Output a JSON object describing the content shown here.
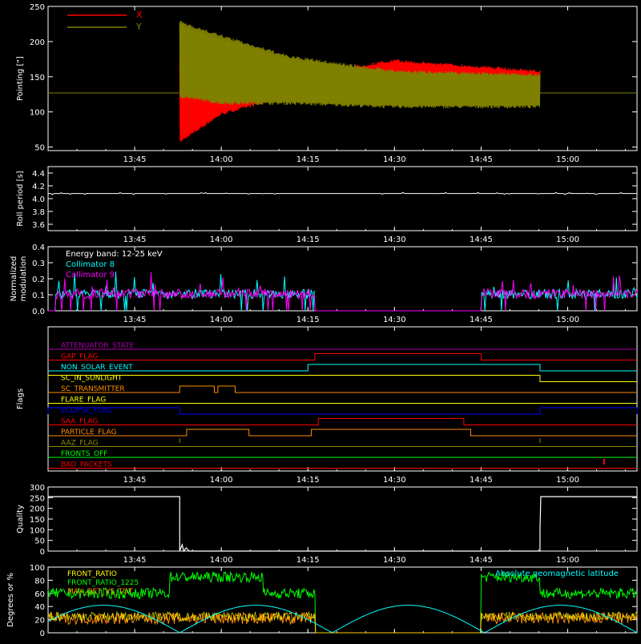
{
  "palette": {
    "bg": "#000000",
    "axis": "#ffffff",
    "red": "#ff0000",
    "olive": "#808000",
    "white": "#ffffff",
    "cyan": "#00ffff",
    "magenta": "#ff00ff",
    "blue": "#0000ff",
    "yellow": "#ffff00",
    "orange": "#ff8c00",
    "green": "#00ff00",
    "olive2": "#8b8b00",
    "purple": "#b000b0",
    "orangered": "#ff4500"
  },
  "time_axis": {
    "range_min": [
      13.5,
      15.2
    ],
    "ticks": [
      {
        "t": 13.75,
        "label": "13:45"
      },
      {
        "t": 14.0,
        "label": "14:00"
      },
      {
        "t": 14.25,
        "label": "14:15"
      },
      {
        "t": 14.5,
        "label": "14:30"
      },
      {
        "t": 14.75,
        "label": "14:45"
      },
      {
        "t": 15.0,
        "label": "15:00"
      }
    ]
  },
  "chart_data": [
    {
      "id": "pointing",
      "type": "line",
      "ylabel": "Pointing [\"]",
      "ylim": [
        45,
        250
      ],
      "yticks": [
        50,
        100,
        150,
        200,
        250
      ],
      "legend": [
        "X",
        "Y"
      ],
      "series": [
        {
          "name": "X",
          "color": "#ff0000",
          "baseline": 127,
          "active": [
            13.88,
            14.92
          ],
          "envelope_points": [
            [
              13.88,
              175,
              55
            ],
            [
              14.0,
              150,
              95
            ],
            [
              14.15,
              135,
              115
            ],
            [
              14.3,
              160,
              130
            ],
            [
              14.5,
              175,
              140
            ],
            [
              14.92,
              160,
              125
            ]
          ]
        },
        {
          "name": "Y",
          "color": "#808000",
          "baseline": 127,
          "active": [
            13.88,
            14.92
          ],
          "envelope_points": [
            [
              13.88,
              230,
              120
            ],
            [
              14.0,
              210,
              110
            ],
            [
              14.2,
              180,
              110
            ],
            [
              14.5,
              160,
              105
            ],
            [
              14.92,
              155,
              105
            ]
          ]
        }
      ]
    },
    {
      "id": "roll",
      "type": "line",
      "ylabel": "Roll period [s]",
      "ylim": [
        3.5,
        4.5
      ],
      "yticks": [
        3.6,
        3.8,
        4.0,
        4.2,
        4.4
      ],
      "series": [
        {
          "name": "",
          "color": "#ffffff",
          "value": 4.08
        }
      ]
    },
    {
      "id": "modulation",
      "type": "line",
      "ylabel": "Normalized modulation",
      "ylim": [
        0.0,
        0.4
      ],
      "yticks": [
        0.0,
        0.1,
        0.2,
        0.3,
        0.4
      ],
      "annotation": "Energy band: 12-25 keV",
      "legend": [
        "Collimator 8",
        "Collimator 9"
      ],
      "active_windows": [
        [
          13.52,
          14.27
        ],
        [
          14.75,
          15.2
        ]
      ],
      "series": [
        {
          "name": "Collimator 8",
          "color": "#00ffff",
          "mean": 0.1
        },
        {
          "name": "Collimator 9",
          "color": "#ff00ff",
          "mean": 0.1
        }
      ]
    },
    {
      "id": "flags",
      "type": "line",
      "ylabel": "Flags",
      "flags": [
        {
          "label": "ATTENUATOR_STATE",
          "color": "#b000b0",
          "segments": []
        },
        {
          "label": "GAP_FLAG",
          "color": "#ff0000",
          "segments": [
            [
              14.27,
              14.75
            ]
          ]
        },
        {
          "label": "NON_SOLAR_EVENT",
          "color": "#00ffff",
          "segments": [
            [
              14.25,
              14.92
            ]
          ]
        },
        {
          "label": "SC_IN_SUNLIGHT",
          "color": "#ffff00",
          "segments": [
            [
              13.5,
              14.92
            ]
          ]
        },
        {
          "label": "SC_TRANSMITTER",
          "color": "#ff8c00",
          "segments": [
            [
              13.88,
              13.98
            ],
            [
              13.99,
              14.04
            ]
          ]
        },
        {
          "label": "FLARE_FLAG",
          "color": "#ffff00",
          "segments": []
        },
        {
          "label": "ECLIPSE_FLAG",
          "color": "#0000ff",
          "segments": [
            [
              13.5,
              13.88
            ],
            [
              14.92,
              15.2
            ]
          ]
        },
        {
          "label": "SAA_FLAG",
          "color": "#ff0000",
          "segments": [
            [
              14.28,
              14.7
            ]
          ]
        },
        {
          "label": "PARTICLE_FLAG",
          "color": "#ff8c00",
          "segments": [
            [
              13.9,
              14.08
            ],
            [
              14.26,
              14.72
            ]
          ]
        },
        {
          "label": "AAZ_FLAG",
          "color": "#8b8b00",
          "segments": []
        },
        {
          "label": "FRONTS_OFF",
          "color": "#00ff00",
          "segments": []
        },
        {
          "label": "BAD_PACKETS",
          "color": "#ff0000",
          "segments": []
        }
      ]
    },
    {
      "id": "quality",
      "type": "line",
      "ylabel": "Quality",
      "ylim": [
        0,
        300
      ],
      "yticks": [
        0,
        50,
        100,
        150,
        200,
        250,
        300
      ],
      "series": [
        {
          "name": "",
          "color": "#ffffff",
          "high": 255,
          "low_window": [
            13.88,
            14.92
          ]
        }
      ]
    },
    {
      "id": "ratios",
      "type": "line",
      "ylabel": "Degrees or %",
      "ylim": [
        0,
        100
      ],
      "yticks": [
        0,
        20,
        40,
        60,
        80,
        100
      ],
      "legend_left": [
        "FRONT_RATIO",
        "FRONT_RATIO_1225",
        "MAX_DET_VS_TOT"
      ],
      "legend_right": "Absolute geomagnetic latitude",
      "series": [
        {
          "name": "FRONT_RATIO",
          "color": "#ffff00"
        },
        {
          "name": "FRONT_RATIO_1225",
          "color": "#00ff00"
        },
        {
          "name": "MAX_DET_VS_TOT",
          "color": "#ff8c00"
        },
        {
          "name": "Absolute geomagnetic latitude",
          "color": "#00ffff"
        }
      ]
    }
  ]
}
